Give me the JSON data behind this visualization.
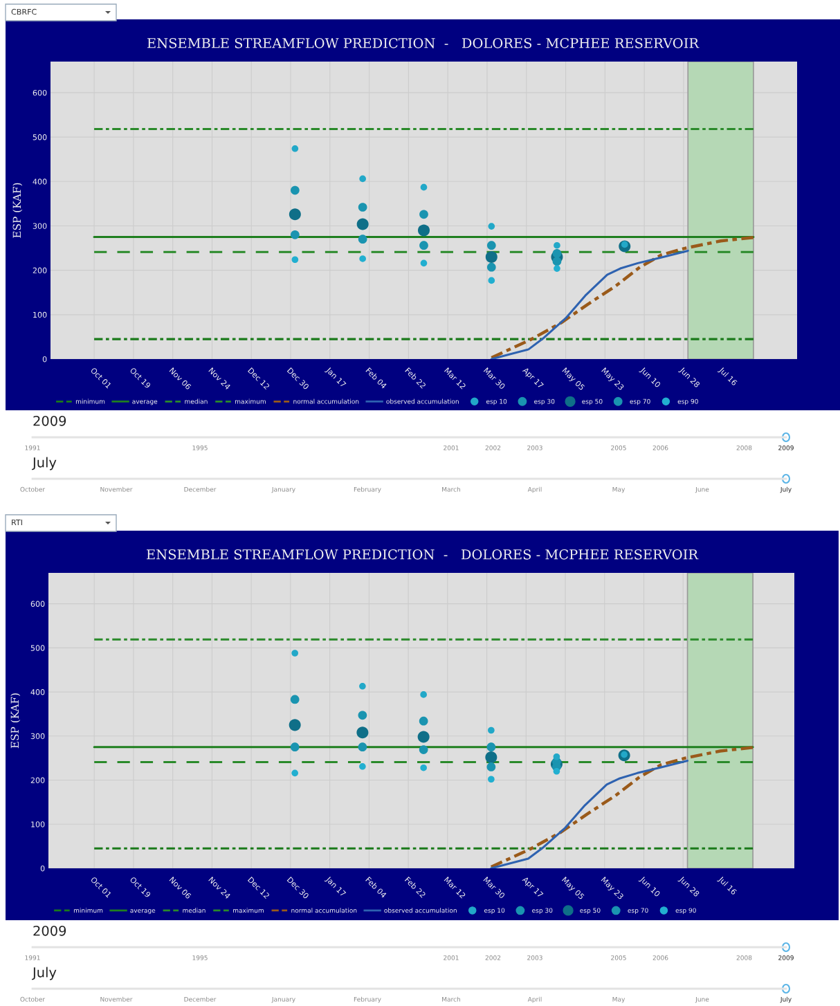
{
  "chart_data": [
    {
      "type": "line",
      "title": "ENSEMBLE STREAMFLOW PREDICTION  -   DOLORES - MCPHEE RESERVOIR",
      "ylabel": "ESP (KAF)",
      "xlim": [
        "2008-09-11",
        "2009-08-19"
      ],
      "ylim": [
        0,
        670
      ],
      "yticks": [
        0,
        100,
        200,
        300,
        400,
        500,
        600
      ],
      "xticks": [
        {
          "value": "2008-10-01",
          "label": "Oct 01"
        },
        {
          "value": "2008-10-19",
          "label": "Oct 19"
        },
        {
          "value": "2008-11-06",
          "label": "Nov 06"
        },
        {
          "value": "2008-11-24",
          "label": "Nov 24"
        },
        {
          "value": "2008-12-12",
          "label": "Dec 12"
        },
        {
          "value": "2008-12-30",
          "label": "Dec 30"
        },
        {
          "value": "2009-01-17",
          "label": "Jan 17"
        },
        {
          "value": "2009-02-04",
          "label": "Feb 04"
        },
        {
          "value": "2009-02-22",
          "label": "Feb 22"
        },
        {
          "value": "2009-03-12",
          "label": "Mar 12"
        },
        {
          "value": "2009-03-30",
          "label": "Mar 30"
        },
        {
          "value": "2009-04-17",
          "label": "Apr 17"
        },
        {
          "value": "2009-05-05",
          "label": "May 05"
        },
        {
          "value": "2009-05-23",
          "label": "May 23"
        },
        {
          "value": "2009-06-10",
          "label": "Jun 10"
        },
        {
          "value": "2009-06-28",
          "label": "Jun 28"
        },
        {
          "value": "2009-07-16",
          "label": "Jul 16"
        }
      ],
      "grid": true,
      "legend": "bottom",
      "bands": [
        {
          "axis": "x",
          "from": "2009-06-30",
          "to": "2009-07-30",
          "color": "#b5d8b5"
        }
      ],
      "series": [
        {
          "type": "line",
          "name": "minimum",
          "color": "#1a7a1a",
          "line_style": "dashdot",
          "x": [
            "2008-10-01",
            "2009-07-30"
          ],
          "values": [
            45,
            45
          ]
        },
        {
          "type": "line",
          "name": "average",
          "color": "#1f7f1f",
          "line_style": "solid",
          "x": [
            "2008-10-01",
            "2009-07-30"
          ],
          "values": [
            275,
            275
          ]
        },
        {
          "type": "line",
          "name": "median",
          "color": "#2a8a2a",
          "line_style": "dashed",
          "x": [
            "2008-10-01",
            "2009-07-30"
          ],
          "values": [
            241,
            241
          ]
        },
        {
          "type": "line",
          "name": "maximum",
          "color": "#2a8a2a",
          "line_style": "dashdot",
          "x": [
            "2008-10-01",
            "2009-07-30"
          ],
          "values": [
            518,
            518
          ]
        },
        {
          "type": "line",
          "name": "normal accumulation",
          "color": "#9a5a1a",
          "line_style": "dashdot",
          "x": [
            "2009-04-01",
            "2009-04-19",
            "2009-05-03",
            "2009-05-15",
            "2009-05-28",
            "2009-06-08",
            "2009-06-18",
            "2009-06-29",
            "2009-07-15",
            "2009-07-30"
          ],
          "values": [
            3,
            44,
            82,
            123,
            165,
            207,
            235,
            250,
            266,
            274
          ]
        },
        {
          "type": "line",
          "name": "observed accumulation",
          "color": "#2e62b0",
          "line_style": "solid",
          "x": [
            "2009-04-01",
            "2009-04-18",
            "2009-04-25",
            "2009-05-05",
            "2009-05-14",
            "2009-05-24",
            "2009-05-30",
            "2009-06-07",
            "2009-06-17",
            "2009-06-30"
          ],
          "values": [
            0,
            22,
            48,
            92,
            143,
            190,
            204,
            216,
            228,
            244
          ]
        },
        {
          "type": "bubble",
          "name": "esp 10",
          "color": "#22a8c8",
          "x": [
            "2009-01-01",
            "2009-02-01",
            "2009-03-01",
            "2009-04-01",
            "2009-05-01",
            "2009-06-01"
          ],
          "values": [
            474,
            406,
            387,
            299,
            256,
            258
          ],
          "sizes": [
            0.32,
            0.32,
            0.32,
            0.32,
            0.32,
            0.32
          ]
        },
        {
          "type": "bubble",
          "name": "esp 30",
          "color": "#1a94b0",
          "x": [
            "2009-01-01",
            "2009-02-01",
            "2009-03-01",
            "2009-04-01",
            "2009-05-01"
          ],
          "values": [
            380,
            342,
            326,
            256,
            238
          ],
          "sizes": [
            0.56,
            0.56,
            0.56,
            0.56,
            0.56
          ]
        },
        {
          "type": "bubble",
          "name": "esp 50",
          "color": "#0f6f88",
          "x": [
            "2009-01-01",
            "2009-02-01",
            "2009-03-01",
            "2009-04-01",
            "2009-05-01",
            "2009-06-01"
          ],
          "values": [
            326,
            304,
            290,
            230,
            230,
            254
          ],
          "sizes": [
            1,
            1,
            1,
            1,
            1,
            1
          ]
        },
        {
          "type": "bubble",
          "name": "esp 70",
          "color": "#1a94b0",
          "x": [
            "2009-01-01",
            "2009-02-01",
            "2009-03-01",
            "2009-04-01",
            "2009-05-01"
          ],
          "values": [
            280,
            270,
            256,
            207,
            220
          ],
          "sizes": [
            0.56,
            0.56,
            0.56,
            0.56,
            0.56
          ]
        },
        {
          "type": "bubble",
          "name": "esp 90",
          "color": "#22afd0",
          "x": [
            "2009-01-01",
            "2009-02-01",
            "2009-03-01",
            "2009-04-01",
            "2009-05-01"
          ],
          "values": [
            224,
            226,
            216,
            177,
            204
          ],
          "sizes": [
            0.32,
            0.32,
            0.32,
            0.32,
            0.32
          ]
        }
      ],
      "annotations": [
        "CBRFC",
        "2009",
        "1991",
        "1995",
        "2001",
        "2002",
        "2003",
        "2005",
        "2006",
        "2008",
        "2009",
        "July",
        "October",
        "November",
        "December",
        "January",
        "February",
        "March",
        "April",
        "May",
        "June",
        "July"
      ]
    },
    {
      "type": "line",
      "title": "ENSEMBLE STREAMFLOW PREDICTION  -   DOLORES - MCPHEE RESERVOIR",
      "ylabel": "ESP (KAF)",
      "xlim": [
        "2008-09-10",
        "2009-08-18"
      ],
      "ylim": [
        0,
        670
      ],
      "yticks": [
        0,
        100,
        200,
        300,
        400,
        500,
        600
      ],
      "xticks": [
        {
          "value": "2008-10-01",
          "label": "Oct 01"
        },
        {
          "value": "2008-10-19",
          "label": "Oct 19"
        },
        {
          "value": "2008-11-06",
          "label": "Nov 06"
        },
        {
          "value": "2008-11-24",
          "label": "Nov 24"
        },
        {
          "value": "2008-12-12",
          "label": "Dec 12"
        },
        {
          "value": "2008-12-30",
          "label": "Dec 30"
        },
        {
          "value": "2009-01-17",
          "label": "Jan 17"
        },
        {
          "value": "2009-02-04",
          "label": "Feb 04"
        },
        {
          "value": "2009-02-22",
          "label": "Feb 22"
        },
        {
          "value": "2009-03-12",
          "label": "Mar 12"
        },
        {
          "value": "2009-03-30",
          "label": "Mar 30"
        },
        {
          "value": "2009-04-17",
          "label": "Apr 17"
        },
        {
          "value": "2009-05-05",
          "label": "May 05"
        },
        {
          "value": "2009-05-23",
          "label": "May 23"
        },
        {
          "value": "2009-06-10",
          "label": "Jun 10"
        },
        {
          "value": "2009-06-28",
          "label": "Jun 28"
        },
        {
          "value": "2009-07-16",
          "label": "Jul 16"
        }
      ],
      "grid": true,
      "legend": "bottom",
      "bands": [
        {
          "axis": "x",
          "from": "2009-06-30",
          "to": "2009-07-30",
          "color": "#b5d8b5"
        }
      ],
      "series": [
        {
          "type": "line",
          "name": "minimum",
          "color": "#1a7a1a",
          "line_style": "dashdot",
          "x": [
            "2008-10-01",
            "2009-07-30"
          ],
          "values": [
            45,
            45
          ]
        },
        {
          "type": "line",
          "name": "average",
          "color": "#1f7f1f",
          "line_style": "solid",
          "x": [
            "2008-10-01",
            "2009-07-30"
          ],
          "values": [
            275,
            275
          ]
        },
        {
          "type": "line",
          "name": "median",
          "color": "#2a8a2a",
          "line_style": "dashed",
          "x": [
            "2008-10-01",
            "2009-07-30"
          ],
          "values": [
            241,
            241
          ]
        },
        {
          "type": "line",
          "name": "maximum",
          "color": "#2a8a2a",
          "line_style": "dashdot",
          "x": [
            "2008-10-01",
            "2009-07-30"
          ],
          "values": [
            519,
            519
          ]
        },
        {
          "type": "line",
          "name": "normal accumulation",
          "color": "#9a5a1a",
          "line_style": "dashdot",
          "x": [
            "2009-04-01",
            "2009-04-19",
            "2009-05-03",
            "2009-05-15",
            "2009-05-28",
            "2009-06-08",
            "2009-06-18",
            "2009-06-29",
            "2009-07-15",
            "2009-07-30"
          ],
          "values": [
            3,
            44,
            82,
            123,
            165,
            207,
            235,
            250,
            266,
            274
          ]
        },
        {
          "type": "line",
          "name": "observed accumulation",
          "color": "#2e62b0",
          "line_style": "solid",
          "x": [
            "2009-04-01",
            "2009-04-18",
            "2009-04-25",
            "2009-05-05",
            "2009-05-14",
            "2009-05-24",
            "2009-05-30",
            "2009-06-07",
            "2009-06-17",
            "2009-06-30"
          ],
          "values": [
            0,
            22,
            48,
            92,
            143,
            190,
            204,
            216,
            228,
            244
          ]
        },
        {
          "type": "bubble",
          "name": "esp 10",
          "color": "#22a8c8",
          "x": [
            "2009-01-01",
            "2009-02-01",
            "2009-03-01",
            "2009-04-01",
            "2009-05-01",
            "2009-06-01"
          ],
          "values": [
            488,
            413,
            394,
            313,
            253,
            258
          ],
          "sizes": [
            0.32,
            0.32,
            0.32,
            0.32,
            0.32,
            0.32
          ]
        },
        {
          "type": "bubble",
          "name": "esp 30",
          "color": "#1a94b0",
          "x": [
            "2009-01-01",
            "2009-02-01",
            "2009-03-01",
            "2009-04-01",
            "2009-05-01"
          ],
          "values": [
            383,
            347,
            334,
            275,
            242
          ],
          "sizes": [
            0.56,
            0.56,
            0.56,
            0.56,
            0.56
          ]
        },
        {
          "type": "bubble",
          "name": "esp 50",
          "color": "#0f6f88",
          "x": [
            "2009-01-01",
            "2009-02-01",
            "2009-03-01",
            "2009-04-01",
            "2009-05-01",
            "2009-06-01"
          ],
          "values": [
            325,
            308,
            298,
            252,
            236,
            256
          ],
          "sizes": [
            1,
            1,
            1,
            1,
            1,
            1
          ]
        },
        {
          "type": "bubble",
          "name": "esp 70",
          "color": "#1a94b0",
          "x": [
            "2009-01-01",
            "2009-02-01",
            "2009-03-01",
            "2009-04-01",
            "2009-05-01"
          ],
          "values": [
            275,
            275,
            269,
            230,
            230
          ],
          "sizes": [
            0.56,
            0.56,
            0.56,
            0.56,
            0.56
          ]
        },
        {
          "type": "bubble",
          "name": "esp 90",
          "color": "#22afd0",
          "x": [
            "2009-01-01",
            "2009-02-01",
            "2009-03-01",
            "2009-04-01",
            "2009-05-01"
          ],
          "values": [
            216,
            231,
            228,
            202,
            220
          ],
          "sizes": [
            0.32,
            0.32,
            0.32,
            0.32,
            0.32
          ]
        }
      ],
      "annotations": [
        "RTI",
        "2009",
        "1991",
        "1995",
        "2001",
        "2002",
        "2003",
        "2005",
        "2006",
        "2008",
        "2009",
        "July",
        "October",
        "November",
        "December",
        "January",
        "February",
        "March",
        "April",
        "May",
        "June",
        "July"
      ]
    }
  ]
}
